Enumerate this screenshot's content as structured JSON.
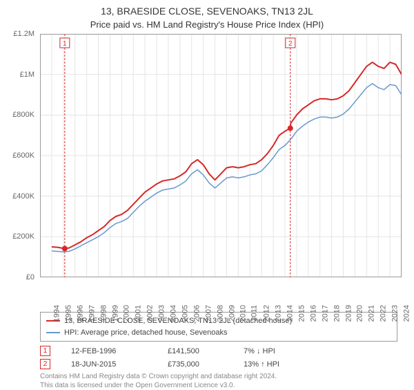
{
  "title": "13, BRAESIDE CLOSE, SEVENOAKS, TN13 2JL",
  "subtitle": "Price paid vs. HM Land Registry's House Price Index (HPI)",
  "chart": {
    "type": "line",
    "background_color": "#ffffff",
    "plot_bg_color": "#ffffff",
    "grid_color": "#e5e5e5",
    "axis_color": "#999999",
    "tick_fontsize": 11,
    "title_fontsize": 14,
    "xlim": [
      1994,
      2025
    ],
    "ylim": [
      0,
      1200000
    ],
    "ytick_step": 200000,
    "yticks": [
      {
        "v": 0,
        "label": "£0"
      },
      {
        "v": 200000,
        "label": "£200K"
      },
      {
        "v": 400000,
        "label": "£400K"
      },
      {
        "v": 600000,
        "label": "£600K"
      },
      {
        "v": 800000,
        "label": "£800K"
      },
      {
        "v": 1000000,
        "label": "£1M"
      },
      {
        "v": 1200000,
        "label": "£1.2M"
      }
    ],
    "xticks": [
      1994,
      1995,
      1996,
      1997,
      1998,
      1999,
      2000,
      2001,
      2002,
      2003,
      2004,
      2005,
      2006,
      2007,
      2008,
      2009,
      2010,
      2011,
      2012,
      2013,
      2014,
      2015,
      2016,
      2017,
      2018,
      2019,
      2020,
      2021,
      2022,
      2023,
      2024,
      2025
    ],
    "series": [
      {
        "id": "price_paid",
        "label": "13, BRAESIDE CLOSE, SEVENOAKS, TN13 2JL (detached house)",
        "color": "#d62728",
        "line_width": 2,
        "data": [
          [
            1995.0,
            150000
          ],
          [
            1995.5,
            148000
          ],
          [
            1996.12,
            141500
          ],
          [
            1996.5,
            145000
          ],
          [
            1997,
            160000
          ],
          [
            1997.5,
            175000
          ],
          [
            1998,
            195000
          ],
          [
            1998.5,
            210000
          ],
          [
            1999,
            230000
          ],
          [
            1999.5,
            250000
          ],
          [
            2000,
            280000
          ],
          [
            2000.5,
            300000
          ],
          [
            2001,
            310000
          ],
          [
            2001.5,
            330000
          ],
          [
            2002,
            360000
          ],
          [
            2002.5,
            390000
          ],
          [
            2003,
            420000
          ],
          [
            2003.5,
            440000
          ],
          [
            2004,
            460000
          ],
          [
            2004.5,
            475000
          ],
          [
            2005,
            480000
          ],
          [
            2005.5,
            485000
          ],
          [
            2006,
            500000
          ],
          [
            2006.5,
            520000
          ],
          [
            2007,
            560000
          ],
          [
            2007.5,
            580000
          ],
          [
            2008,
            555000
          ],
          [
            2008.5,
            510000
          ],
          [
            2009,
            480000
          ],
          [
            2009.5,
            510000
          ],
          [
            2010,
            540000
          ],
          [
            2010.5,
            545000
          ],
          [
            2011,
            540000
          ],
          [
            2011.5,
            545000
          ],
          [
            2012,
            555000
          ],
          [
            2012.5,
            560000
          ],
          [
            2013,
            580000
          ],
          [
            2013.5,
            610000
          ],
          [
            2014,
            650000
          ],
          [
            2014.5,
            700000
          ],
          [
            2015,
            720000
          ],
          [
            2015.46,
            735000
          ],
          [
            2015.5,
            760000
          ],
          [
            2016,
            800000
          ],
          [
            2016.5,
            830000
          ],
          [
            2017,
            850000
          ],
          [
            2017.5,
            870000
          ],
          [
            2018,
            880000
          ],
          [
            2018.5,
            880000
          ],
          [
            2019,
            875000
          ],
          [
            2019.5,
            880000
          ],
          [
            2020,
            895000
          ],
          [
            2020.5,
            920000
          ],
          [
            2021,
            960000
          ],
          [
            2021.5,
            1000000
          ],
          [
            2022,
            1040000
          ],
          [
            2022.5,
            1060000
          ],
          [
            2023,
            1040000
          ],
          [
            2023.5,
            1030000
          ],
          [
            2024,
            1060000
          ],
          [
            2024.5,
            1050000
          ],
          [
            2025,
            1000000
          ]
        ]
      },
      {
        "id": "hpi",
        "label": "HPI: Average price, detached house, Sevenoaks",
        "color": "#6699cc",
        "line_width": 1.5,
        "data": [
          [
            1995.0,
            130000
          ],
          [
            1995.5,
            128000
          ],
          [
            1996,
            125000
          ],
          [
            1996.5,
            128000
          ],
          [
            1997,
            140000
          ],
          [
            1997.5,
            155000
          ],
          [
            1998,
            170000
          ],
          [
            1998.5,
            185000
          ],
          [
            1999,
            200000
          ],
          [
            1999.5,
            220000
          ],
          [
            2000,
            245000
          ],
          [
            2000.5,
            265000
          ],
          [
            2001,
            275000
          ],
          [
            2001.5,
            290000
          ],
          [
            2002,
            320000
          ],
          [
            2002.5,
            350000
          ],
          [
            2003,
            375000
          ],
          [
            2003.5,
            395000
          ],
          [
            2004,
            415000
          ],
          [
            2004.5,
            430000
          ],
          [
            2005,
            435000
          ],
          [
            2005.5,
            440000
          ],
          [
            2006,
            455000
          ],
          [
            2006.5,
            475000
          ],
          [
            2007,
            510000
          ],
          [
            2007.5,
            530000
          ],
          [
            2008,
            505000
          ],
          [
            2008.5,
            465000
          ],
          [
            2009,
            440000
          ],
          [
            2009.5,
            465000
          ],
          [
            2010,
            490000
          ],
          [
            2010.5,
            495000
          ],
          [
            2011,
            490000
          ],
          [
            2011.5,
            495000
          ],
          [
            2012,
            505000
          ],
          [
            2012.5,
            510000
          ],
          [
            2013,
            525000
          ],
          [
            2013.5,
            555000
          ],
          [
            2014,
            590000
          ],
          [
            2014.5,
            630000
          ],
          [
            2015,
            650000
          ],
          [
            2015.5,
            680000
          ],
          [
            2016,
            720000
          ],
          [
            2016.5,
            745000
          ],
          [
            2017,
            765000
          ],
          [
            2017.5,
            780000
          ],
          [
            2018,
            790000
          ],
          [
            2018.5,
            790000
          ],
          [
            2019,
            785000
          ],
          [
            2019.5,
            790000
          ],
          [
            2020,
            805000
          ],
          [
            2020.5,
            830000
          ],
          [
            2021,
            865000
          ],
          [
            2021.5,
            900000
          ],
          [
            2022,
            935000
          ],
          [
            2022.5,
            955000
          ],
          [
            2023,
            935000
          ],
          [
            2023.5,
            925000
          ],
          [
            2024,
            950000
          ],
          [
            2024.5,
            945000
          ],
          [
            2025,
            900000
          ]
        ]
      }
    ],
    "markers": [
      {
        "n": "1",
        "x": 1996.12,
        "y": 141500,
        "date": "12-FEB-1996",
        "price": "£141,500",
        "pct": "7% ↓ HPI"
      },
      {
        "n": "2",
        "x": 2015.46,
        "y": 735000,
        "date": "18-JUN-2015",
        "price": "£735,000",
        "pct": "13% ↑ HPI"
      }
    ],
    "marker_line_color": "#d62728",
    "marker_line_dash": "3,2",
    "marker_dot_color": "#d62728",
    "marker_dot_radius": 4
  },
  "legend": {
    "border_color": "#999999",
    "fontsize": 11
  },
  "attribution": {
    "line1": "Contains HM Land Registry data © Crown copyright and database right 2024.",
    "line2": "This data is licensed under the Open Government Licence v3.0."
  }
}
